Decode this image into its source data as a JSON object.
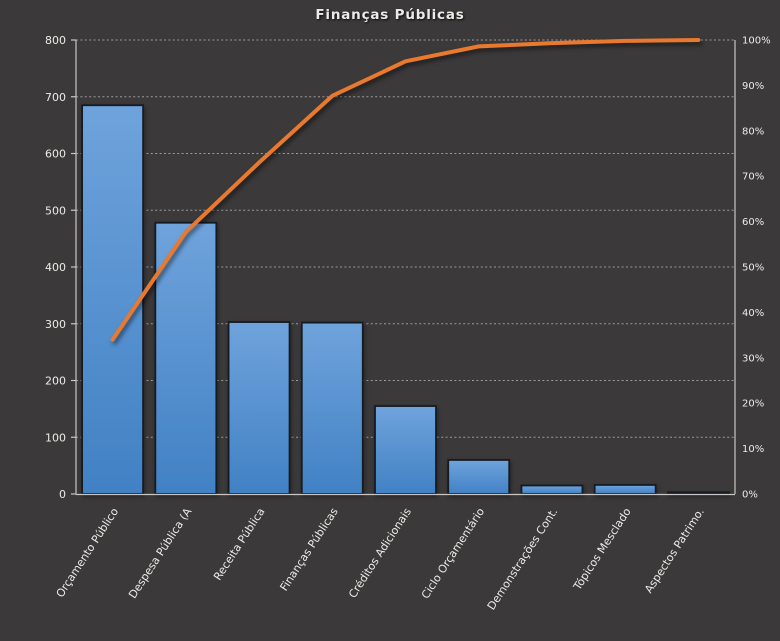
{
  "title": "Finanças Públicas",
  "colors": {
    "background": "#3B3939",
    "bar_top": "#6FA3DC",
    "bar_bottom": "#4181C4",
    "bar_border": "#151B23",
    "line": "#E8792E",
    "axis_line": "#C9C7C4",
    "grid_line": "#C4C2BF",
    "text": "#EDEBE8"
  },
  "chart_data": {
    "type": "bar",
    "subtype": "pareto (bars + cumulative percent line)",
    "title": "Finanças Públicas",
    "categories": [
      "Orçamento Público",
      "Despesa Pública (A",
      "Receita Pública",
      "Finanças Públicas",
      "Créditos Adicionais",
      "Ciclo Orçamentário",
      "Demonstrações Cont.",
      "Tópicos Mesclado",
      "Aspectos Patrimo."
    ],
    "series": [
      {
        "name": "bars-frequency",
        "type": "bar",
        "axis": "left",
        "values": [
          685,
          478,
          303,
          302,
          155,
          60,
          15,
          16,
          3
        ]
      },
      {
        "name": "cumulative-percent-line",
        "type": "line",
        "axis": "right",
        "values": [
          34,
          57.7,
          73,
          87.7,
          95.3,
          98.6,
          99.3,
          99.8,
          100
        ]
      }
    ],
    "left_axis": {
      "min": 0,
      "max": 800,
      "step": 100,
      "tick_labels": [
        "800",
        "700",
        "600",
        "500",
        "400",
        "300",
        "200",
        "100",
        "0"
      ]
    },
    "right_axis": {
      "min": 0,
      "max": 100,
      "step": 10,
      "tick_labels": [
        "100%",
        "90%",
        "80%",
        "70%",
        "60%",
        "50%",
        "40%",
        "30%",
        "20%",
        "10%",
        "0%"
      ]
    },
    "grid": "horizontal dashed lines at left-axis steps",
    "legend": "none"
  }
}
